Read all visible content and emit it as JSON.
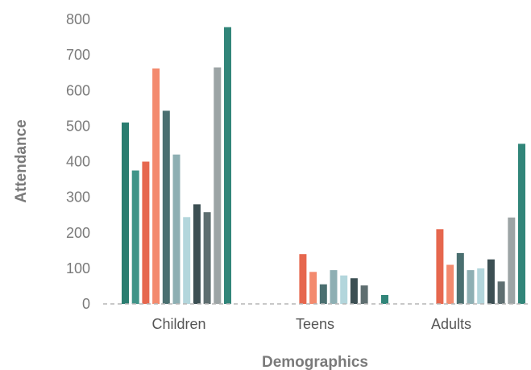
{
  "chart_data": {
    "type": "bar",
    "title": "",
    "xlabel": "Demographics",
    "ylabel": "Attendance",
    "categories": [
      "Children",
      "Teens",
      "Adults"
    ],
    "yticks": [
      0,
      100,
      200,
      300,
      400,
      500,
      600,
      700,
      800
    ],
    "ylim": [
      0,
      800
    ],
    "grid": false,
    "baseline": "dashed",
    "series": [
      {
        "color": "#2a7d70",
        "values": [
          510,
          0,
          0
        ]
      },
      {
        "color": "#3f9488",
        "values": [
          375,
          0,
          0
        ]
      },
      {
        "color": "#e6674e",
        "values": [
          400,
          140,
          210
        ]
      },
      {
        "color": "#f38a6e",
        "values": [
          662,
          90,
          110
        ]
      },
      {
        "color": "#4a6f70",
        "values": [
          543,
          55,
          143
        ]
      },
      {
        "color": "#8eafb3",
        "values": [
          420,
          95,
          95
        ]
      },
      {
        "color": "#b3d6dc",
        "values": [
          244,
          80,
          100
        ]
      },
      {
        "color": "#3c4f53",
        "values": [
          280,
          72,
          125
        ]
      },
      {
        "color": "#5e6e70",
        "values": [
          258,
          52,
          63
        ]
      },
      {
        "color": "#9ca4a5",
        "values": [
          665,
          0,
          243
        ]
      },
      {
        "color": "#318579",
        "values": [
          778,
          25,
          450
        ]
      }
    ]
  }
}
